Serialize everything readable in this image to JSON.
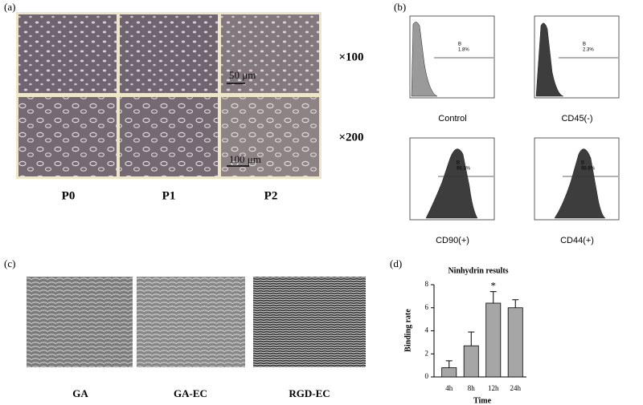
{
  "panel_a": {
    "label": "(a)",
    "columns": [
      "P0",
      "P1",
      "P2"
    ],
    "magnifications": [
      "×100",
      "×200"
    ],
    "scale_bars": [
      "50 μm",
      "100 μm"
    ]
  },
  "panel_b": {
    "label": "(b)",
    "plots": [
      {
        "title": "Control",
        "gate": "B",
        "percent": "1.8%"
      },
      {
        "title": "CD45(-)",
        "gate": "B",
        "percent": "2.3%"
      },
      {
        "title": "CD90(+)",
        "gate": "B",
        "percent": "96.3%"
      },
      {
        "title": "CD44(+)",
        "gate": "B",
        "percent": "98.8%"
      }
    ]
  },
  "panel_c": {
    "label": "(c)",
    "images": [
      "GA",
      "GA-EC",
      "RGD-EC"
    ]
  },
  "chart_data": {
    "type": "bar",
    "panel_label": "(d)",
    "title": "Ninhydrin results",
    "x_label": "Time",
    "y_label": "Binding rate",
    "categories": [
      "4h",
      "8h",
      "12h",
      "24h"
    ],
    "values": [
      0.8,
      2.7,
      6.4,
      6.0
    ],
    "errors": [
      0.6,
      1.2,
      1.0,
      0.7
    ],
    "annotations": [
      {
        "category": 2,
        "text": "*"
      }
    ],
    "color": "#a6a6a6",
    "ylim": [
      0,
      8
    ],
    "yticks": [
      0,
      2,
      4,
      6,
      8
    ]
  }
}
